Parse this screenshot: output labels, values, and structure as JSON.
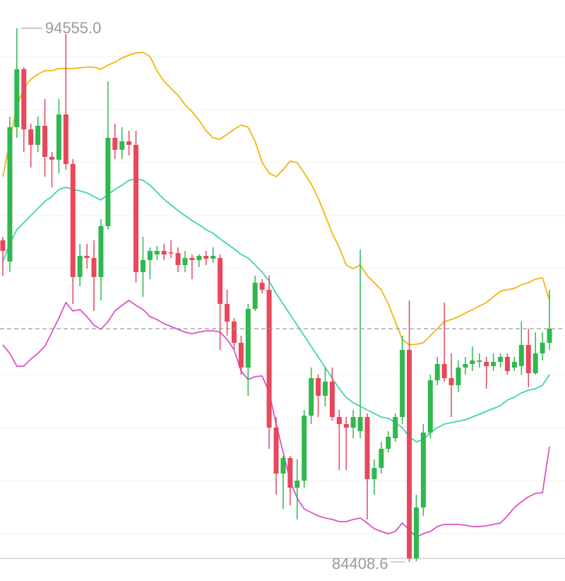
{
  "chart_data": {
    "type": "candlestick",
    "ylim": [
      84045,
      95093
    ],
    "gridlines": [
      94018,
      93010,
      92002,
      90994,
      89986,
      88978,
      87970,
      86962,
      85954,
      84946
    ],
    "up_color": "#2fb84f",
    "down_color": "#e9475c",
    "annotations": [
      {
        "label": "94555.0",
        "value": 94555.0
      },
      {
        "label": "84408.6",
        "value": 84408.6
      }
    ],
    "open": [
      90523,
      90120,
      92674,
      93776,
      92633,
      92338,
      92701,
      92109,
      92056,
      92916,
      91975,
      89825,
      90228,
      90187,
      89825,
      90792,
      92472,
      92244,
      92405,
      92338,
      89919,
      90147,
      90255,
      90322,
      90295,
      90281,
      90053,
      90187,
      90147,
      90228,
      90174,
      90187,
      89314,
      88978,
      88575,
      88104,
      89220,
      89717,
      89583,
      86962,
      86088,
      86384,
      85819,
      85954,
      87190,
      87903,
      87567,
      87835,
      87163,
      87029,
      86962,
      86895,
      87163,
      85981,
      86196,
      86559,
      86760,
      87163,
      88440,
      84475,
      85443,
      86868,
      87862,
      88171,
      87903,
      87768,
      88104,
      88171,
      88212,
      88212,
      88131,
      88212,
      88306,
      88104,
      88131,
      88534,
      87997,
      88373,
      88575
    ],
    "high": [
      90591,
      92875,
      94555.0,
      93816,
      92741,
      92875,
      93211,
      92203,
      93211,
      94448,
      92069,
      90456,
      90456,
      90523,
      90927,
      93547,
      92741,
      92674,
      92607,
      92607,
      90591,
      90389,
      90416,
      90456,
      90523,
      90389,
      90322,
      90255,
      90255,
      90322,
      90389,
      90255,
      89583,
      89045,
      88709,
      89314,
      89851,
      89784,
      89851,
      87163,
      86424,
      86424,
      86357,
      87298,
      88104,
      87970,
      88104,
      88104,
      87298,
      87163,
      87298,
      90349,
      87231,
      86357,
      86693,
      86895,
      87231,
      88709,
      89381,
      85685,
      87029,
      87970,
      88306,
      89341,
      88373,
      88239,
      88306,
      88507,
      88373,
      88306,
      88373,
      88373,
      88373,
      88306,
      88978,
      88843,
      88776,
      88776,
      89583
    ],
    "low": [
      89851,
      89919,
      92472,
      92203,
      91908,
      92203,
      91733,
      91531,
      91800,
      91867,
      89314,
      89650,
      89986,
      89179,
      89381,
      90725,
      92069,
      92069,
      92136,
      89717,
      89448,
      89784,
      90147,
      90147,
      90187,
      89919,
      89919,
      89784,
      90013,
      90053,
      90093,
      88440,
      88709,
      88440,
      87970,
      87567,
      89179,
      89515,
      86559,
      85685,
      85416,
      85483,
      85215,
      85819,
      87029,
      87163,
      87365,
      87096,
      86155,
      86155,
      86760,
      86760,
      85215,
      85685,
      86088,
      86491,
      86693,
      87029,
      84408.6,
      84420,
      85282,
      86760,
      87768,
      87835,
      87163,
      87634,
      87970,
      88037,
      88104,
      87701,
      88037,
      88104,
      87970,
      88037,
      87970,
      87728,
      87970,
      88239,
      88440
    ],
    "close": [
      90322,
      92674,
      93776,
      92633,
      92338,
      92701,
      92109,
      92056,
      92916,
      91975,
      89825,
      90228,
      90187,
      89825,
      90792,
      92472,
      92244,
      92405,
      92338,
      89919,
      90147,
      90322,
      90322,
      90255,
      90281,
      90053,
      90187,
      90147,
      90228,
      90174,
      90228,
      89314,
      88978,
      88575,
      88104,
      89220,
      89717,
      89583,
      86962,
      86088,
      86384,
      85819,
      85954,
      87190,
      87903,
      87567,
      87835,
      87163,
      87029,
      86962,
      87163,
      87163,
      85981,
      86196,
      86559,
      86787,
      87163,
      88440,
      84475,
      85443,
      86868,
      87862,
      88171,
      87903,
      87768,
      88104,
      88171,
      88239,
      88239,
      88131,
      88212,
      88306,
      88037,
      88212,
      88534,
      87997,
      88373,
      88575,
      88843
    ],
    "series": [
      {
        "color": "#f0b60e",
        "values": [
          91733,
          92405,
          93077,
          93413,
          93588,
          93682,
          93749,
          93749,
          93789,
          93789,
          93789,
          93803,
          93816,
          93816,
          93776,
          93857,
          93910,
          93991,
          94045,
          94085,
          94098,
          94018,
          93749,
          93547,
          93413,
          93279,
          93104,
          92969,
          92808,
          92607,
          92472,
          92445,
          92539,
          92633,
          92714,
          92674,
          92405,
          92002,
          91800,
          91733,
          91867,
          92029,
          92002,
          91800,
          91599,
          91330,
          90994,
          90658,
          90389,
          90053,
          89986,
          90053,
          89851,
          89717,
          89583,
          89314,
          88978,
          88642,
          88534,
          88548,
          88575,
          88709,
          88843,
          88978,
          89018,
          89072,
          89139,
          89206,
          89274,
          89341,
          89448,
          89556,
          89583,
          89610,
          89677,
          89717,
          89784,
          89811,
          89381
        ]
      },
      {
        "color": "#3fd3b4",
        "values": [
          90120,
          90456,
          90725,
          90859,
          90994,
          91128,
          91263,
          91357,
          91491,
          91531,
          91491,
          91464,
          91424,
          91357,
          91290,
          91397,
          91491,
          91572,
          91666,
          91693,
          91666,
          91572,
          91437,
          91303,
          91195,
          91088,
          90994,
          90900,
          90819,
          90725,
          90658,
          90550,
          90456,
          90362,
          90255,
          90187,
          90053,
          89919,
          89744,
          89515,
          89314,
          89112,
          88911,
          88709,
          88507,
          88306,
          88104,
          87903,
          87701,
          87540,
          87432,
          87365,
          87298,
          87231,
          87163,
          87137,
          87056,
          86962,
          86787,
          86693,
          86733,
          86868,
          86962,
          87029,
          87056,
          87083,
          87110,
          87163,
          87217,
          87271,
          87325,
          87378,
          87486,
          87540,
          87620,
          87674,
          87701,
          87768,
          87970
        ]
      },
      {
        "color": "#d954c6",
        "values": [
          88534,
          88373,
          88131,
          88131,
          88265,
          88373,
          88507,
          88776,
          89045,
          89341,
          89179,
          89206,
          89072,
          88911,
          88830,
          88978,
          89179,
          89287,
          89381,
          89287,
          89206,
          89072,
          89018,
          88937,
          88884,
          88830,
          88776,
          88749,
          88776,
          88803,
          88803,
          88776,
          88642,
          88440,
          88037,
          87876,
          87930,
          87943,
          87634,
          87029,
          86491,
          85954,
          85618,
          85416,
          85349,
          85282,
          85242,
          85215,
          85174,
          85174,
          85215,
          85242,
          85147,
          85040,
          84986,
          84946,
          84986,
          85147,
          85013,
          84879,
          84946,
          84986,
          85080,
          85121,
          85121,
          85121,
          85107,
          85080,
          85080,
          85094,
          85121,
          85147,
          85282,
          85443,
          85551,
          85645,
          85712,
          85725,
          86599
        ]
      }
    ]
  }
}
